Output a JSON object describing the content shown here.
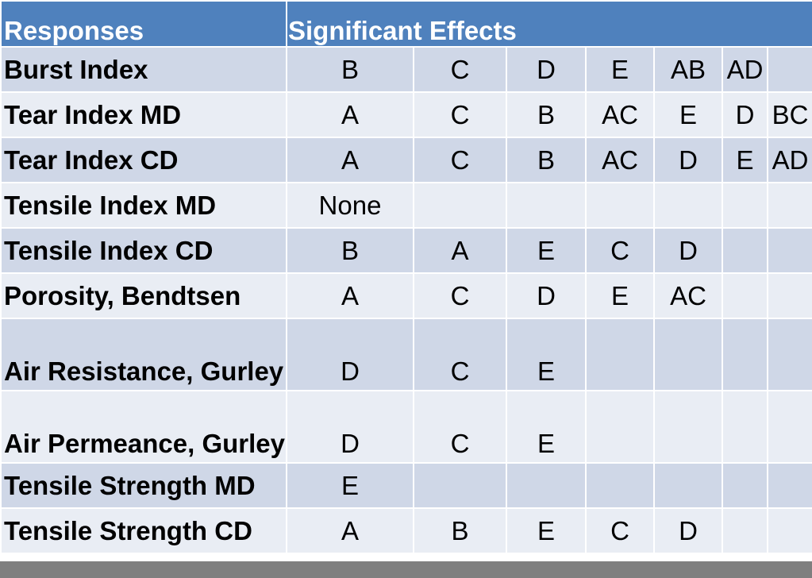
{
  "table": {
    "headers": {
      "responses": "Responses",
      "effects": "Significant Effects"
    },
    "rows": [
      {
        "label": "Burst Index",
        "effects": [
          "B",
          "C",
          "D",
          "E",
          "AB",
          "AD",
          ""
        ]
      },
      {
        "label": "Tear Index MD",
        "effects": [
          "A",
          "C",
          "B",
          "AC",
          "E",
          "D",
          "BC"
        ]
      },
      {
        "label": "Tear Index CD",
        "effects": [
          "A",
          "C",
          "B",
          "AC",
          "D",
          "E",
          "AD"
        ]
      },
      {
        "label": "Tensile Index MD",
        "effects": [
          "None",
          "",
          "",
          "",
          "",
          "",
          ""
        ]
      },
      {
        "label": "Tensile Index CD",
        "effects": [
          "B",
          "A",
          "E",
          "C",
          "D",
          "",
          ""
        ]
      },
      {
        "label": "Porosity, Bendtsen",
        "effects": [
          "A",
          "C",
          "D",
          "E",
          "AC",
          "",
          ""
        ]
      },
      {
        "label": "Air Resistance, Gurley",
        "effects": [
          "D",
          "C",
          "E",
          "",
          "",
          "",
          ""
        ]
      },
      {
        "label": "Air Permeance, Gurley",
        "effects": [
          "D",
          "C",
          "E",
          "",
          "",
          "",
          ""
        ]
      },
      {
        "label": "Tensile Strength MD",
        "effects": [
          "E",
          "",
          "",
          "",
          "",
          "",
          ""
        ]
      },
      {
        "label": "Tensile Strength CD",
        "effects": [
          "A",
          "B",
          "E",
          "C",
          "D",
          "",
          ""
        ]
      }
    ]
  }
}
